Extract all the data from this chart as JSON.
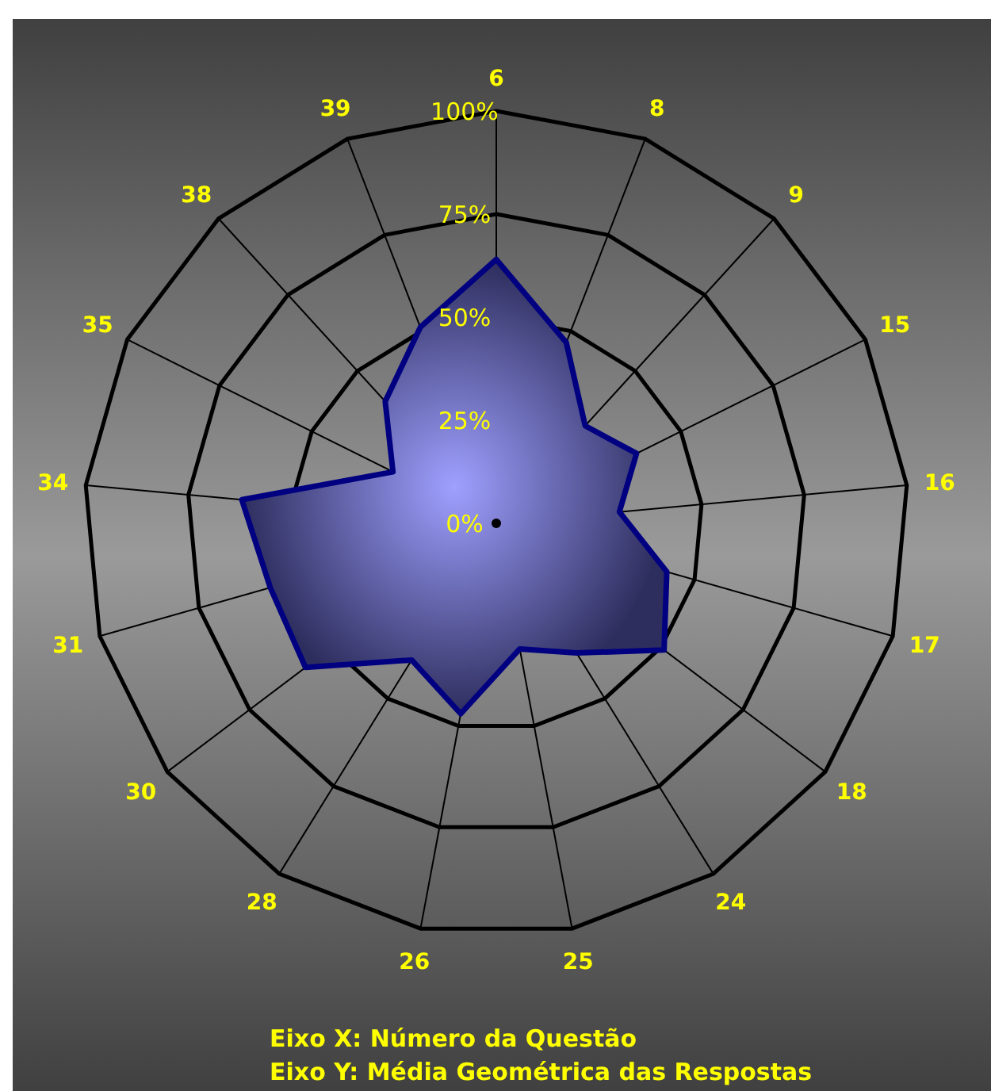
{
  "chart_data": {
    "type": "radar",
    "categories": [
      "6",
      "8",
      "9",
      "15",
      "16",
      "17",
      "18",
      "24",
      "25",
      "26",
      "28",
      "30",
      "31",
      "34",
      "35",
      "38",
      "39"
    ],
    "series": [
      {
        "color": "#000080",
        "values": [
          64,
          47,
          32,
          38,
          30,
          43,
          51,
          37,
          31,
          47,
          39,
          58,
          57,
          62,
          28,
          40,
          51
        ]
      }
    ],
    "ylim": [
      0,
      100
    ],
    "yticks": [
      {
        "value": 0,
        "label": "0%"
      },
      {
        "value": 25,
        "label": "25%"
      },
      {
        "value": 50,
        "label": "50%"
      },
      {
        "value": 75,
        "label": "75%"
      },
      {
        "value": 100,
        "label": "100%"
      }
    ],
    "annotations": [
      "Eixo X: Número da Questão",
      "Eixo Y: Média Geométrica das Respostas"
    ]
  }
}
